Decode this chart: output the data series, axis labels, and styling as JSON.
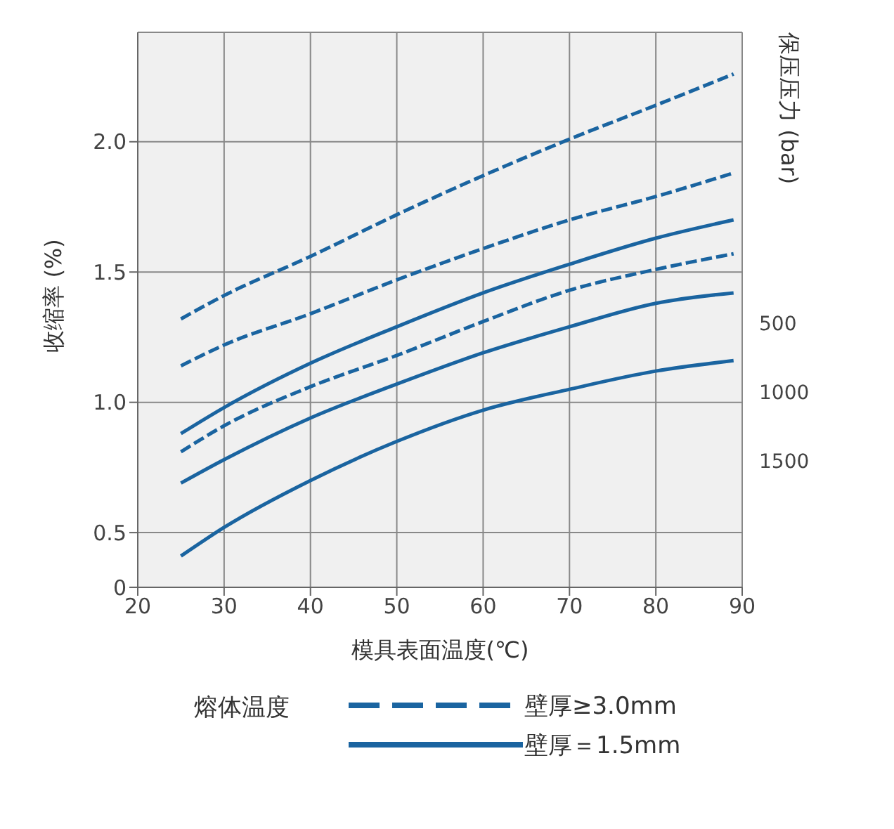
{
  "chart_data": {
    "type": "line",
    "xlabel": "模具表面温度(℃)",
    "ylabel": "收缩率 (%)",
    "y2label": "保压压力 (bar)",
    "legend_title": "熔体温度",
    "legend": "bottom",
    "grid": true,
    "marker": "none",
    "annotations": [
      "500",
      "1000",
      "1500"
    ],
    "x": [
      25,
      30,
      40,
      50,
      60,
      70,
      80,
      89
    ],
    "xlim": [
      20,
      90
    ],
    "xticks": [
      20,
      30,
      40,
      50,
      60,
      70,
      80,
      90
    ],
    "ylim": [
      0.29,
      2.42
    ],
    "yticks": [
      {
        "value": 0.29,
        "label": "0"
      },
      0.5,
      {
        "value": 1,
        "label": "1.0"
      },
      1.5,
      {
        "value": 2,
        "label": "2.0"
      }
    ],
    "series": [
      {
        "name": "壁厚≥3.0mm",
        "color": "#1a64a0",
        "line_style": "dashed",
        "values": [
          1.32,
          1.41,
          1.56,
          1.72,
          1.87,
          2.01,
          2.14,
          2.26
        ]
      },
      {
        "color": "#1a64a0",
        "line_style": "dashed",
        "values": [
          1.14,
          1.22,
          1.34,
          1.47,
          1.59,
          1.7,
          1.79,
          1.88
        ]
      },
      {
        "color": "#1a64a0",
        "line_style": "dashed",
        "values": [
          0.81,
          0.91,
          1.06,
          1.18,
          1.31,
          1.43,
          1.51,
          1.57
        ]
      },
      {
        "name": "壁厚＝1.5mm",
        "color": "#1a64a0",
        "line_style": "solid",
        "values": [
          0.88,
          0.98,
          1.15,
          1.29,
          1.42,
          1.53,
          1.63,
          1.7
        ]
      },
      {
        "color": "#1a64a0",
        "line_style": "solid",
        "values": [
          0.69,
          0.78,
          0.94,
          1.07,
          1.19,
          1.29,
          1.38,
          1.42
        ]
      },
      {
        "color": "#1a64a0",
        "line_style": "solid",
        "values": [
          0.41,
          0.52,
          0.7,
          0.85,
          0.97,
          1.05,
          1.12,
          1.16
        ]
      }
    ]
  }
}
